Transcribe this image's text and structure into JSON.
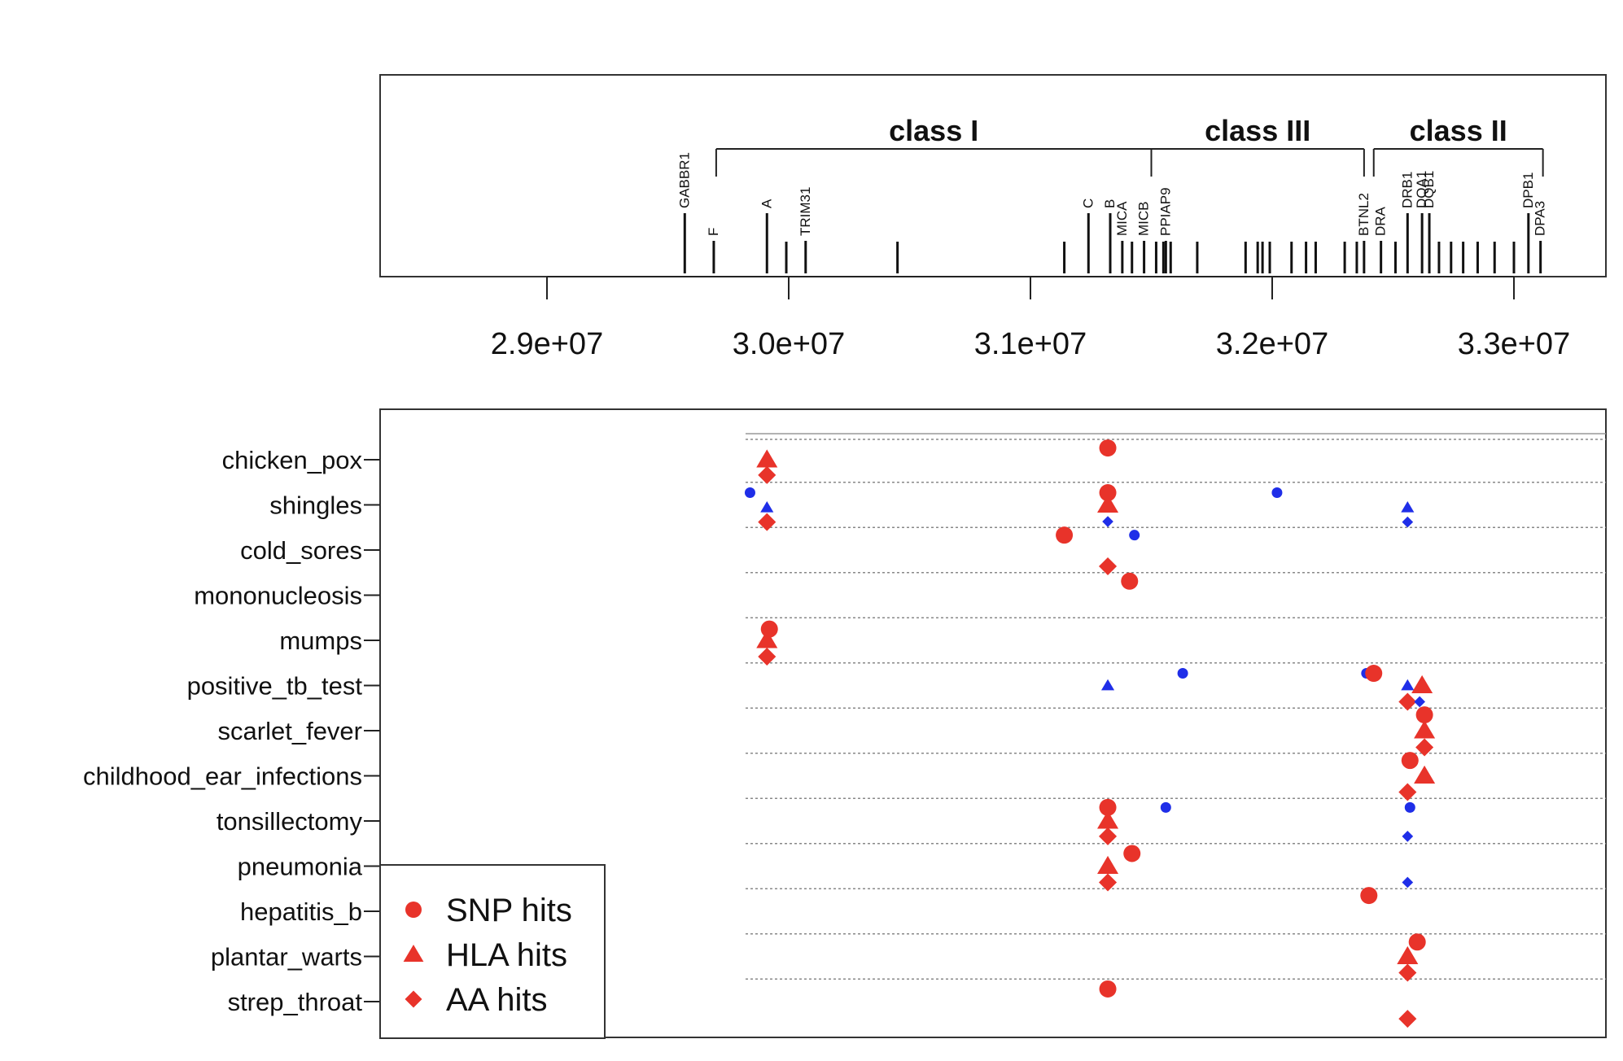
{
  "chart_data": [
    {
      "type": "gene-map",
      "x": {
        "ticks": [
          29000000,
          30000000,
          31000000,
          32000000,
          33000000
        ],
        "tick_labels": [
          "2.9e+07",
          "3.0e+07",
          "3.1e+07",
          "3.2e+07",
          "3.3e+07"
        ]
      },
      "regions": [
        {
          "label": "class I",
          "start": 29700000,
          "end": 31500000
        },
        {
          "label": "class III",
          "start": 31500000,
          "end": 32380000
        },
        {
          "label": "class II",
          "start": 32420000,
          "end": 33120000
        }
      ],
      "genes": [
        {
          "label": "GABBR1",
          "pos": 29570000,
          "tall": true
        },
        {
          "label": "F",
          "pos": 29690000,
          "tall": false
        },
        {
          "label": "A",
          "pos": 29910000,
          "tall": true
        },
        {
          "label": "TRIM31",
          "pos": 30070000,
          "tall": false
        },
        {
          "label": "C",
          "pos": 31240000,
          "tall": true
        },
        {
          "label": "B",
          "pos": 31330000,
          "tall": true
        },
        {
          "label": "MICA",
          "pos": 31380000,
          "tall": false
        },
        {
          "label": "MICB",
          "pos": 31470000,
          "tall": false
        },
        {
          "label": "PPIAP9",
          "pos": 31560000,
          "tall": false
        },
        {
          "label": "BTNL2",
          "pos": 32380000,
          "tall": false
        },
        {
          "label": "DRA",
          "pos": 32450000,
          "tall": false
        },
        {
          "label": "DRB1",
          "pos": 32560000,
          "tall": true
        },
        {
          "label": "DQA1",
          "pos": 32620000,
          "tall": true
        },
        {
          "label": "DQB1",
          "pos": 32650000,
          "tall": true
        },
        {
          "label": "DPB1",
          "pos": 33060000,
          "tall": true
        },
        {
          "label": "DPA3",
          "pos": 33110000,
          "tall": false
        }
      ],
      "unlabeled_loci": [
        29990000,
        30450000,
        31140000,
        31420000,
        31520000,
        31550000,
        31580000,
        31690000,
        31890000,
        31940000,
        31960000,
        31990000,
        32080000,
        32140000,
        32180000,
        32300000,
        32350000,
        32510000,
        32690000,
        32740000,
        32790000,
        32850000,
        32920000,
        33000000
      ]
    },
    {
      "type": "scatter",
      "categories": [
        "chicken_pox",
        "shingles",
        "cold_sores",
        "mononucleosis",
        "mumps",
        "positive_tb_test",
        "scarlet_fever",
        "childhood_ear_infections",
        "tonsillectomy",
        "pneumonia",
        "hepatitis_b",
        "plantar_warts",
        "strep_throat"
      ],
      "legend": {
        "position": "bottom-left",
        "entries": [
          "SNP hits",
          "HLA hits",
          "AA hits"
        ]
      },
      "marker_types": {
        "snp": "circle",
        "hla": "triangle",
        "aa": "diamond"
      },
      "colors": {
        "major": "#e8332a",
        "minor": "#1f2ee8"
      },
      "points": [
        {
          "category": "chicken_pox",
          "type": "hla",
          "x": 29910000,
          "offset": 0.0,
          "size": "large"
        },
        {
          "category": "chicken_pox",
          "type": "aa",
          "x": 29910000,
          "offset": 0.34,
          "size": "large"
        },
        {
          "category": "chicken_pox",
          "type": "snp",
          "x": 31320000,
          "offset": -0.26,
          "size": "large"
        },
        {
          "category": "shingles",
          "type": "snp",
          "x": 29840000,
          "offset": -0.27,
          "size": "small"
        },
        {
          "category": "shingles",
          "type": "hla",
          "x": 29910000,
          "offset": 0.06,
          "size": "small"
        },
        {
          "category": "shingles",
          "type": "aa",
          "x": 29910000,
          "offset": 0.38,
          "size": "large"
        },
        {
          "category": "shingles",
          "type": "snp",
          "x": 31320000,
          "offset": -0.27,
          "size": "large"
        },
        {
          "category": "shingles",
          "type": "hla",
          "x": 31320000,
          "offset": 0.0,
          "size": "large"
        },
        {
          "category": "shingles",
          "type": "aa",
          "x": 31320000,
          "offset": 0.37,
          "size": "small"
        },
        {
          "category": "shingles",
          "type": "snp",
          "x": 32020000,
          "offset": -0.27,
          "size": "small"
        },
        {
          "category": "shingles",
          "type": "hla",
          "x": 32560000,
          "offset": 0.06,
          "size": "small"
        },
        {
          "category": "shingles",
          "type": "aa",
          "x": 32560000,
          "offset": 0.38,
          "size": "small"
        },
        {
          "category": "cold_sores",
          "type": "snp",
          "x": 31140000,
          "offset": -0.33,
          "size": "large"
        },
        {
          "category": "cold_sores",
          "type": "snp",
          "x": 31430000,
          "offset": -0.33,
          "size": "small"
        },
        {
          "category": "cold_sores",
          "type": "aa",
          "x": 31320000,
          "offset": 0.36,
          "size": "large"
        },
        {
          "category": "mononucleosis",
          "type": "snp",
          "x": 31410000,
          "offset": -0.31,
          "size": "large"
        },
        {
          "category": "mumps",
          "type": "snp",
          "x": 29920000,
          "offset": -0.25,
          "size": "large"
        },
        {
          "category": "mumps",
          "type": "hla",
          "x": 29910000,
          "offset": 0.0,
          "size": "large"
        },
        {
          "category": "mumps",
          "type": "aa",
          "x": 29910000,
          "offset": 0.36,
          "size": "large"
        },
        {
          "category": "positive_tb_test",
          "type": "snp",
          "x": 31630000,
          "offset": -0.27,
          "size": "small"
        },
        {
          "category": "positive_tb_test",
          "type": "snp",
          "x": 32390000,
          "offset": -0.27,
          "size": "small"
        },
        {
          "category": "positive_tb_test",
          "type": "snp",
          "x": 32420000,
          "offset": -0.27,
          "size": "large"
        },
        {
          "category": "positive_tb_test",
          "type": "hla",
          "x": 31320000,
          "offset": 0.0,
          "size": "small"
        },
        {
          "category": "positive_tb_test",
          "type": "hla",
          "x": 32560000,
          "offset": 0.0,
          "size": "small"
        },
        {
          "category": "positive_tb_test",
          "type": "hla",
          "x": 32620000,
          "offset": 0.0,
          "size": "large"
        },
        {
          "category": "positive_tb_test",
          "type": "aa",
          "x": 32560000,
          "offset": 0.36,
          "size": "large"
        },
        {
          "category": "positive_tb_test",
          "type": "aa",
          "x": 32610000,
          "offset": 0.36,
          "size": "small"
        },
        {
          "category": "scarlet_fever",
          "type": "snp",
          "x": 32630000,
          "offset": -0.35,
          "size": "large"
        },
        {
          "category": "scarlet_fever",
          "type": "hla",
          "x": 32630000,
          "offset": 0.0,
          "size": "large"
        },
        {
          "category": "scarlet_fever",
          "type": "aa",
          "x": 32630000,
          "offset": 0.37,
          "size": "large"
        },
        {
          "category": "childhood_ear_infections",
          "type": "snp",
          "x": 32570000,
          "offset": -0.34,
          "size": "large"
        },
        {
          "category": "childhood_ear_infections",
          "type": "hla",
          "x": 32630000,
          "offset": 0.0,
          "size": "large"
        },
        {
          "category": "childhood_ear_infections",
          "type": "aa",
          "x": 32560000,
          "offset": 0.36,
          "size": "large"
        },
        {
          "category": "tonsillectomy",
          "type": "snp",
          "x": 31320000,
          "offset": -0.3,
          "size": "large"
        },
        {
          "category": "tonsillectomy",
          "type": "snp",
          "x": 31560000,
          "offset": -0.3,
          "size": "small"
        },
        {
          "category": "tonsillectomy",
          "type": "snp",
          "x": 32570000,
          "offset": -0.3,
          "size": "small"
        },
        {
          "category": "tonsillectomy",
          "type": "hla",
          "x": 31320000,
          "offset": 0.0,
          "size": "large"
        },
        {
          "category": "tonsillectomy",
          "type": "aa",
          "x": 31320000,
          "offset": 0.34,
          "size": "large"
        },
        {
          "category": "tonsillectomy",
          "type": "aa",
          "x": 32560000,
          "offset": 0.34,
          "size": "small"
        },
        {
          "category": "pneumonia",
          "type": "snp",
          "x": 31420000,
          "offset": -0.28,
          "size": "large"
        },
        {
          "category": "pneumonia",
          "type": "hla",
          "x": 31320000,
          "offset": 0.0,
          "size": "large"
        },
        {
          "category": "pneumonia",
          "type": "aa",
          "x": 31320000,
          "offset": 0.36,
          "size": "large"
        },
        {
          "category": "pneumonia",
          "type": "aa",
          "x": 32560000,
          "offset": 0.36,
          "size": "small"
        },
        {
          "category": "hepatitis_b",
          "type": "snp",
          "x": 32400000,
          "offset": -0.35,
          "size": "large"
        },
        {
          "category": "plantar_warts",
          "type": "snp",
          "x": 32600000,
          "offset": -0.32,
          "size": "large"
        },
        {
          "category": "plantar_warts",
          "type": "hla",
          "x": 32560000,
          "offset": 0.0,
          "size": "large"
        },
        {
          "category": "plantar_warts",
          "type": "aa",
          "x": 32560000,
          "offset": 0.36,
          "size": "large"
        },
        {
          "category": "strep_throat",
          "type": "snp",
          "x": 31320000,
          "offset": -0.28,
          "size": "large"
        },
        {
          "category": "strep_throat",
          "type": "aa",
          "x": 32560000,
          "offset": 0.38,
          "size": "large"
        }
      ]
    }
  ]
}
